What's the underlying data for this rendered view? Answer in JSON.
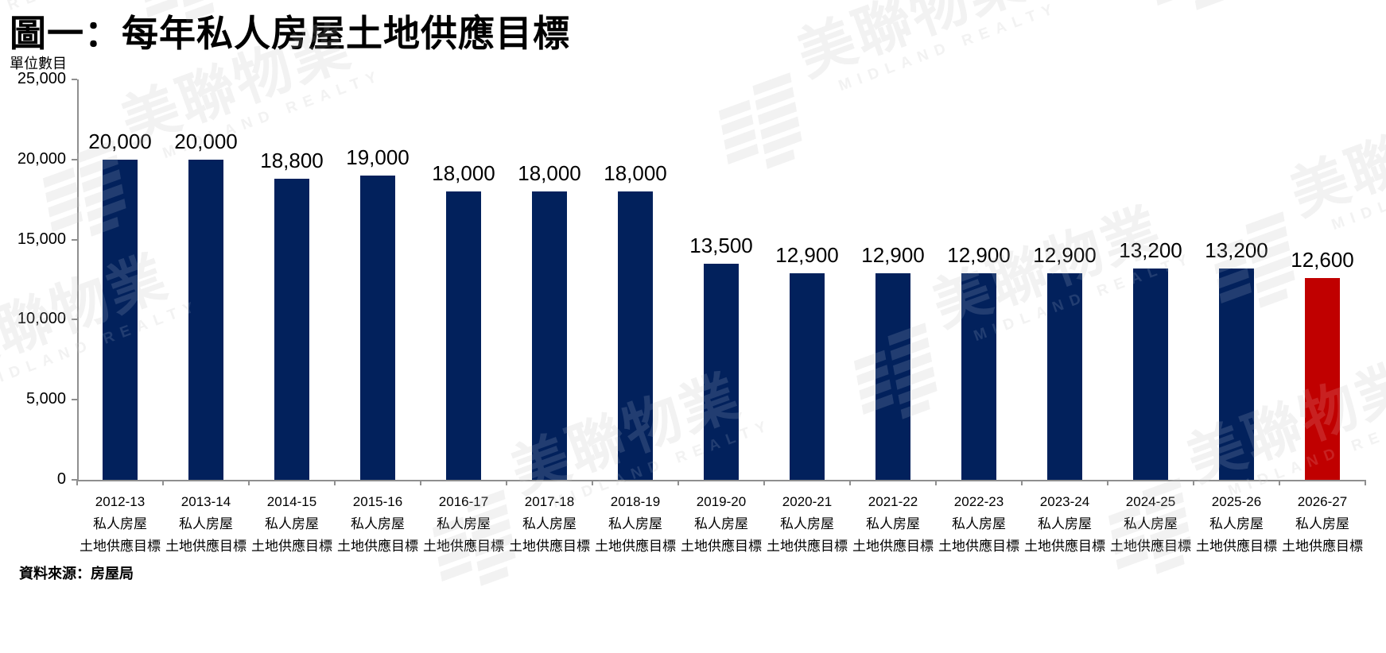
{
  "title": "圖一：每年私人房屋土地供應目標",
  "unit_label": "單位數目",
  "source": "資料來源：房屋局",
  "watermark": {
    "cn": "美聯物業",
    "en": "MIDLAND REALTY"
  },
  "colors": {
    "bar": "#02215C",
    "highlight_bar": "#C00000",
    "axis": "#8F8F8F",
    "text": "#000000",
    "watermark": "#F0F0F0"
  },
  "chart_data": {
    "type": "bar",
    "title": "圖一：每年私人房屋土地供應目標",
    "xlabel": "",
    "ylabel": "單位數目",
    "ylim": [
      0,
      25000
    ],
    "y_tick_interval": 5000,
    "y_tick_labels": [
      "25,000",
      "20,000",
      "15,000",
      "10,000",
      "5,000",
      "0"
    ],
    "grid": "off",
    "legend": "none",
    "categories": [
      "2012-13",
      "2013-14",
      "2014-15",
      "2015-16",
      "2016-17",
      "2017-18",
      "2018-19",
      "2019-20",
      "2020-21",
      "2021-22",
      "2022-23",
      "2023-24",
      "2024-25",
      "2025-26",
      "2026-27"
    ],
    "category_sublabel_lines": [
      "私人房屋",
      "土地供應目標"
    ],
    "values": [
      20000,
      20000,
      18800,
      19000,
      18000,
      18000,
      18000,
      13500,
      12900,
      12900,
      12900,
      12900,
      13200,
      13200,
      12600
    ],
    "value_labels": [
      "20,000",
      "20,000",
      "18,800",
      "19,000",
      "18,000",
      "18,000",
      "18,000",
      "13,500",
      "12,900",
      "12,900",
      "12,900",
      "12,900",
      "13,200",
      "13,200",
      "12,600"
    ],
    "highlight_index": 14,
    "source": "資料來源：房屋局"
  }
}
